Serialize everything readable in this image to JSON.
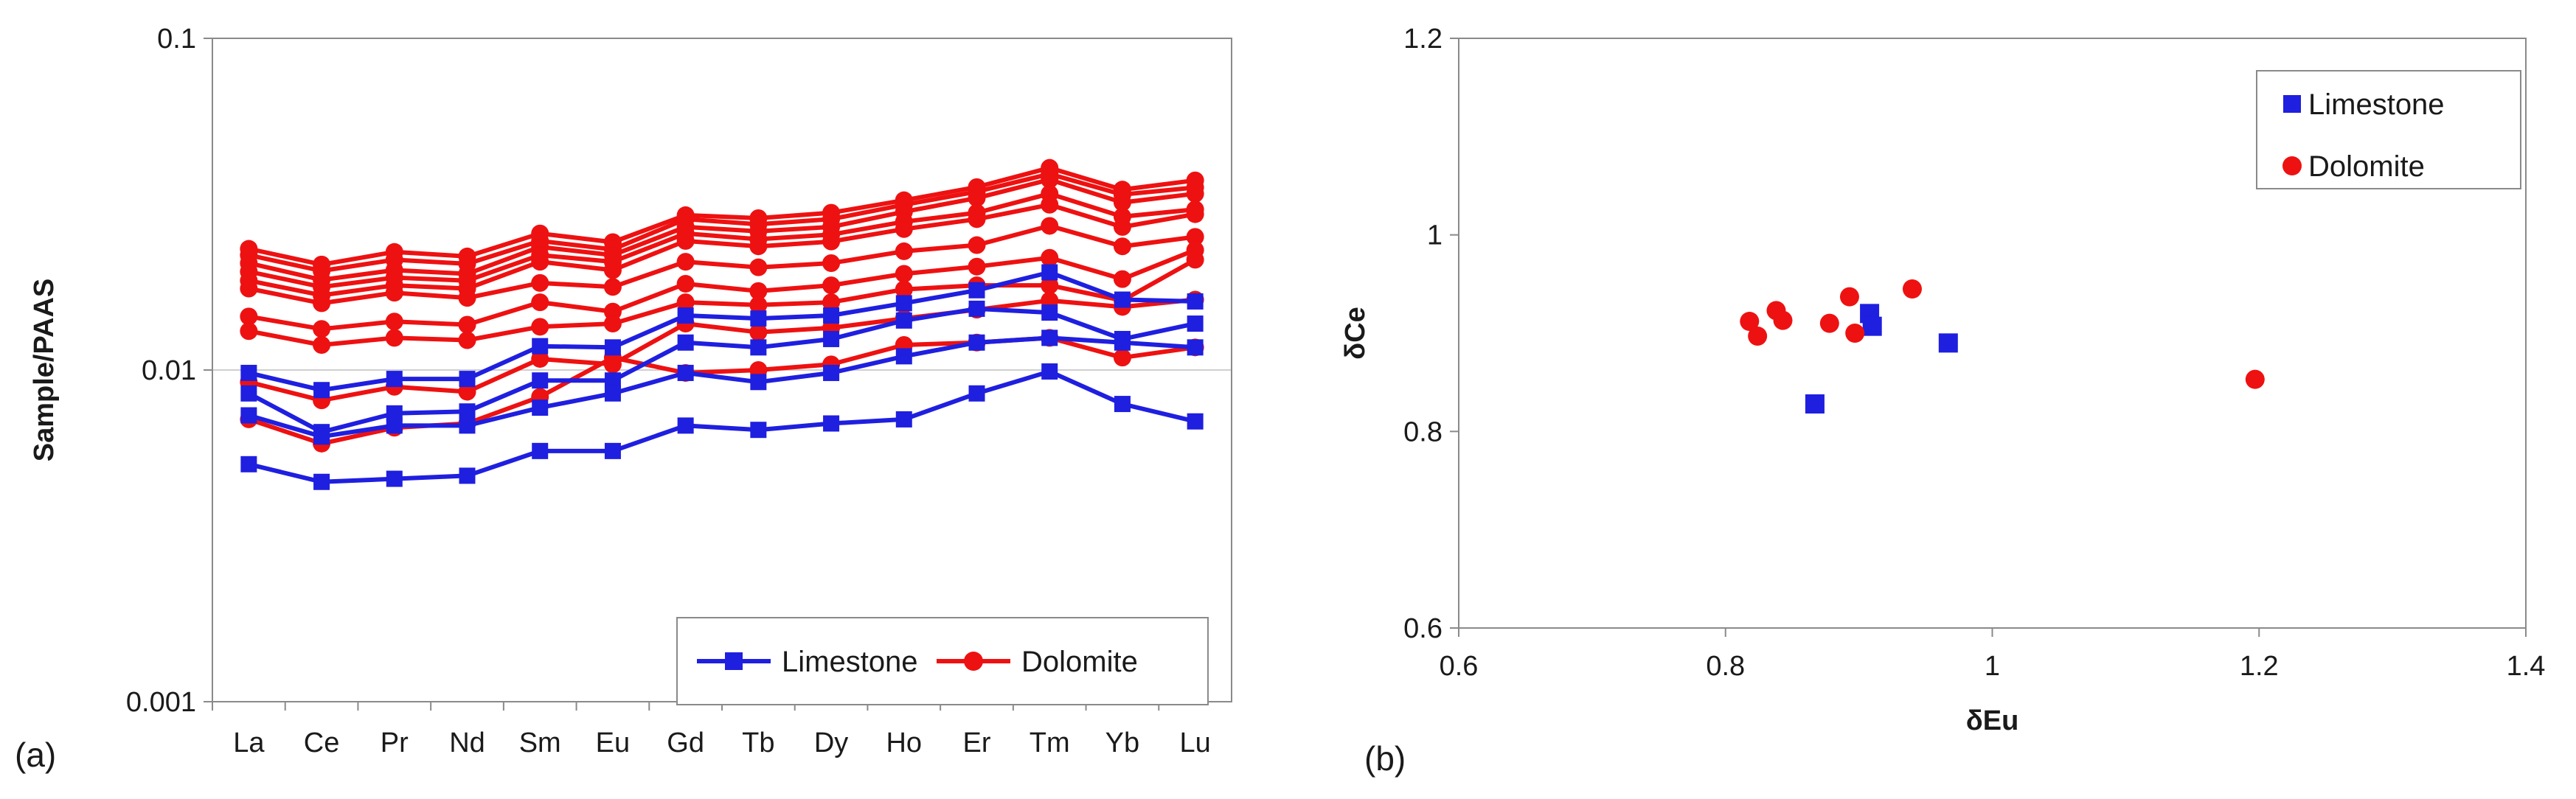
{
  "colors": {
    "limestone": "#1f1fe0",
    "dolomite": "#ee1111",
    "axis": "#8a8a8a",
    "grid": "#cfcfcf"
  },
  "chart_data": [
    {
      "panel": "(a)",
      "type": "line",
      "yscale": "log",
      "ylabel": "Sample/PAAS",
      "xlabel": "",
      "ylim": [
        0.001,
        0.1
      ],
      "yticks": [
        "0.001",
        "0.01",
        "0.1"
      ],
      "categories": [
        "La",
        "Ce",
        "Pr",
        "Nd",
        "Sm",
        "Eu",
        "Gd",
        "Tb",
        "Dy",
        "Ho",
        "Er",
        "Tm",
        "Yb",
        "Lu"
      ],
      "legend": {
        "position": "bottom-right",
        "entries": [
          "Limestone",
          "Dolomite"
        ]
      },
      "series": [
        {
          "name": "Limestone",
          "values": [
            0.0098,
            0.0087,
            0.0094,
            0.0094,
            0.0118,
            0.0117,
            0.0146,
            0.0143,
            0.0146,
            0.0159,
            0.0174,
            0.0197,
            0.0163,
            0.0161
          ]
        },
        {
          "name": "Limestone",
          "values": [
            0.0085,
            0.0065,
            0.0074,
            0.0075,
            0.0093,
            0.0093,
            0.0121,
            0.0117,
            0.0124,
            0.0141,
            0.0153,
            0.0149,
            0.0124,
            0.0138
          ]
        },
        {
          "name": "Limestone",
          "values": [
            0.0073,
            0.0063,
            0.0068,
            0.0068,
            0.0077,
            0.0085,
            0.0098,
            0.0092,
            0.0098,
            0.011,
            0.0121,
            0.0125,
            0.0121,
            0.0117
          ]
        },
        {
          "name": "Limestone",
          "values": [
            0.0052,
            0.0046,
            0.0047,
            0.0048,
            0.0057,
            0.0057,
            0.0068,
            0.0066,
            0.0069,
            0.0071,
            0.0085,
            0.0099,
            0.0079,
            0.007
          ]
        },
        {
          "name": "Dolomite",
          "values": [
            0.0232,
            0.0208,
            0.0227,
            0.022,
            0.0258,
            0.0243,
            0.0293,
            0.0287,
            0.0298,
            0.0325,
            0.0356,
            0.0407,
            0.035,
            0.0373
          ]
        },
        {
          "name": "Dolomite",
          "values": [
            0.0222,
            0.0199,
            0.0215,
            0.0209,
            0.0245,
            0.0231,
            0.0285,
            0.0275,
            0.0285,
            0.0315,
            0.0345,
            0.039,
            0.0338,
            0.0355
          ]
        },
        {
          "name": "Dolomite",
          "values": [
            0.021,
            0.0187,
            0.02,
            0.0195,
            0.0235,
            0.0222,
            0.027,
            0.0262,
            0.027,
            0.03,
            0.033,
            0.0375,
            0.032,
            0.034
          ]
        },
        {
          "name": "Dolomite",
          "values": [
            0.0198,
            0.0178,
            0.019,
            0.0186,
            0.0222,
            0.0212,
            0.0258,
            0.0248,
            0.0256,
            0.028,
            0.0298,
            0.034,
            0.029,
            0.0305
          ]
        },
        {
          "name": "Dolomite",
          "values": [
            0.0186,
            0.0168,
            0.018,
            0.0176,
            0.0212,
            0.02,
            0.0245,
            0.0236,
            0.0244,
            0.0266,
            0.0285,
            0.0315,
            0.027,
            0.0295
          ]
        },
        {
          "name": "Dolomite",
          "values": [
            0.0176,
            0.0159,
            0.0171,
            0.0165,
            0.0183,
            0.0178,
            0.0212,
            0.0204,
            0.021,
            0.0228,
            0.0238,
            0.0272,
            0.0236,
            0.0252
          ]
        },
        {
          "name": "Dolomite",
          "values": [
            0.0145,
            0.0133,
            0.014,
            0.0137,
            0.016,
            0.015,
            0.0182,
            0.0173,
            0.018,
            0.0195,
            0.0205,
            0.0218,
            0.0188,
            0.023
          ]
        },
        {
          "name": "Dolomite",
          "values": [
            0.0131,
            0.0119,
            0.0125,
            0.0123,
            0.0135,
            0.0138,
            0.016,
            0.0157,
            0.016,
            0.0175,
            0.018,
            0.018,
            0.0162,
            0.0215
          ]
        },
        {
          "name": "Dolomite",
          "values": [
            0.0092,
            0.0081,
            0.0089,
            0.0086,
            0.0108,
            0.0104,
            0.0138,
            0.013,
            0.0134,
            0.0143,
            0.0152,
            0.0162,
            0.0155,
            0.0163
          ]
        },
        {
          "name": "Dolomite",
          "values": [
            0.0071,
            0.006,
            0.0067,
            0.0069,
            0.0083,
            0.0109,
            0.0098,
            0.01,
            0.0104,
            0.0119,
            0.0121,
            0.0125,
            0.0109,
            0.0117
          ]
        }
      ]
    },
    {
      "panel": "(b)",
      "type": "scatter",
      "xlabel": "δEu",
      "ylabel": "δCe",
      "xlim": [
        0.6,
        1.4
      ],
      "ylim": [
        0.6,
        1.2
      ],
      "xticks": [
        "0.6",
        "0.8",
        "1",
        "1.2",
        "1.4"
      ],
      "yticks": [
        "0.6",
        "0.8",
        "1",
        "1.2"
      ],
      "legend": {
        "position": "top-right",
        "entries": [
          "Limestone",
          "Dolomite"
        ]
      },
      "series": [
        {
          "name": "Limestone",
          "points": [
            [
              0.867,
              0.828
            ],
            [
              0.908,
              0.92
            ],
            [
              0.91,
              0.907
            ],
            [
              0.967,
              0.89
            ]
          ]
        },
        {
          "name": "Dolomite",
          "points": [
            [
              0.818,
              0.912
            ],
            [
              0.824,
              0.897
            ],
            [
              0.838,
              0.923
            ],
            [
              0.843,
              0.913
            ],
            [
              0.878,
              0.91
            ],
            [
              0.893,
              0.937
            ],
            [
              0.897,
              0.9
            ],
            [
              0.94,
              0.945
            ],
            [
              1.197,
              0.853
            ]
          ]
        }
      ]
    }
  ]
}
